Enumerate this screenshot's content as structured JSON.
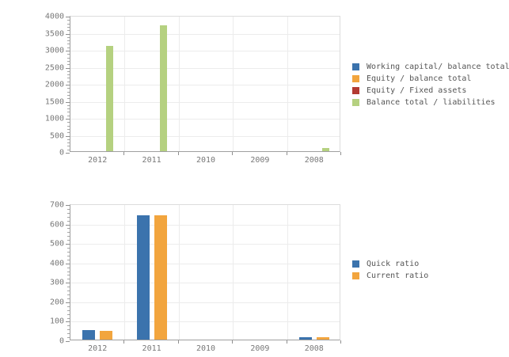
{
  "page": {
    "background": "#ffffff",
    "text_color": "#777777",
    "grid_color": "#ececec",
    "axis_color": "#9f9f9f"
  },
  "chart_data": [
    {
      "type": "bar",
      "title": "",
      "xlabel": "",
      "ylabel": "",
      "categories": [
        "2012",
        "2011",
        "2010",
        "2009",
        "2008"
      ],
      "series": [
        {
          "name": "Working capital/ balance total",
          "color": "#3b73ad",
          "values": [
            0,
            0,
            0,
            0,
            0
          ]
        },
        {
          "name": "Equity / balance total",
          "color": "#f2a53e",
          "values": [
            0,
            0,
            0,
            0,
            0
          ]
        },
        {
          "name": "Equity / Fixed assets",
          "color": "#b33b32",
          "values": [
            0,
            0,
            0,
            0,
            0
          ]
        },
        {
          "name": "Balance total / liabilities",
          "color": "#b5d180",
          "values": [
            3100,
            3700,
            0,
            0,
            90
          ]
        }
      ],
      "ylim": [
        0,
        4000
      ],
      "ytick_step": 500,
      "minor_ticks_per_major": 5,
      "grid": true,
      "legend_position": "right"
    },
    {
      "type": "bar",
      "title": "",
      "xlabel": "",
      "ylabel": "",
      "categories": [
        "2012",
        "2011",
        "2010",
        "2009",
        "2008"
      ],
      "series": [
        {
          "name": "Quick ratio",
          "color": "#3b73ad",
          "values": [
            47,
            640,
            0,
            0,
            13
          ]
        },
        {
          "name": "Current ratio",
          "color": "#f2a53e",
          "values": [
            45,
            640,
            0,
            0,
            12
          ]
        }
      ],
      "ylim": [
        0,
        700
      ],
      "ytick_step": 100,
      "minor_ticks_per_major": 5,
      "grid": true,
      "legend_position": "right"
    }
  ]
}
